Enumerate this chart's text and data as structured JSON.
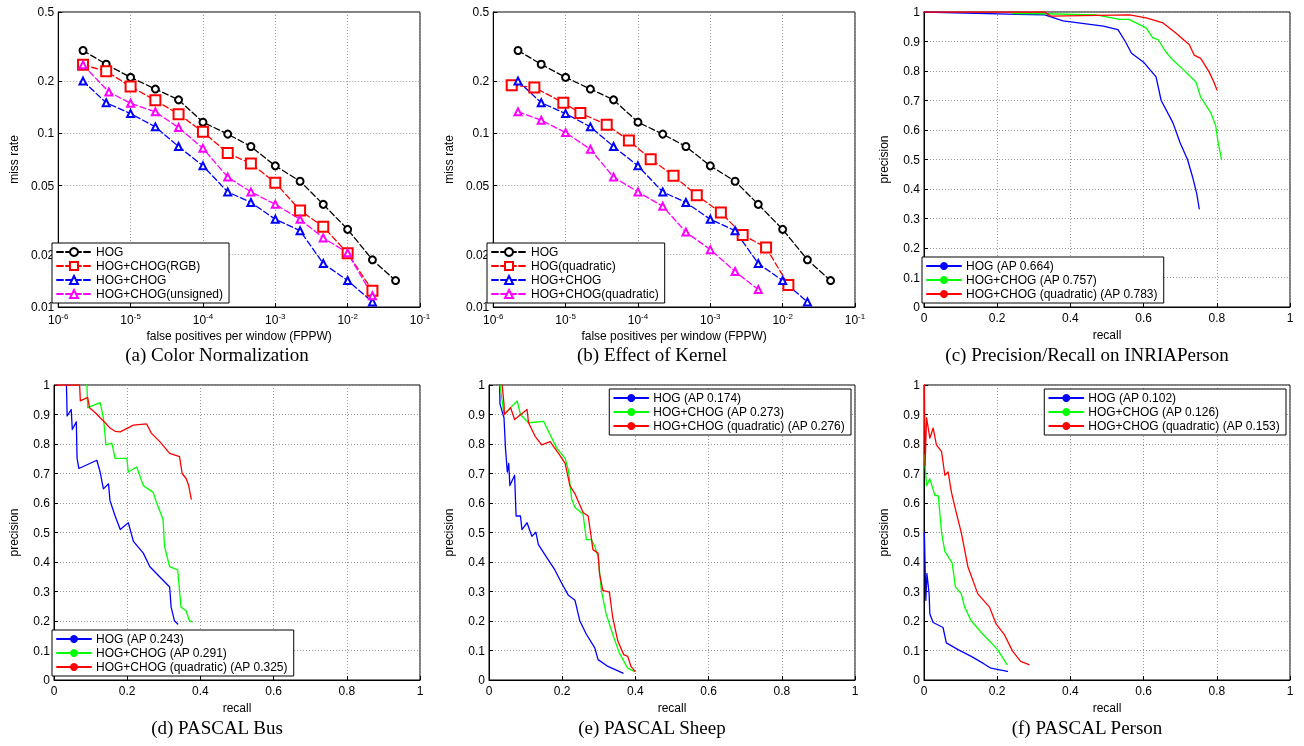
{
  "chart_data": [
    {
      "type": "line",
      "title": "(a) Color Normalization",
      "xlabel": "false positives per window (FPPW)",
      "ylabel": "miss rate",
      "log": "xy",
      "xlim": [
        1e-06,
        0.1
      ],
      "ylim": [
        0.01,
        0.5
      ],
      "xticks": [
        {
          "value": 1e-06,
          "label": "10$^{-6}$"
        },
        {
          "value": 1e-05,
          "label": "10$^{-5}$"
        },
        {
          "value": 0.0001,
          "label": "10$^{-4}$"
        },
        {
          "value": 0.001,
          "label": "10$^{-3}$"
        },
        {
          "value": 0.01,
          "label": "10$^{-2}$"
        },
        {
          "value": 0.1,
          "label": "10$^{-1}$"
        }
      ],
      "yticks": [
        0.01,
        0.02,
        0.05,
        0.1,
        0.2,
        0.5
      ],
      "grid": true,
      "legend": "bottom left",
      "series": [
        {
          "name": "HOG",
          "color": "#000000",
          "marker": "circle",
          "line_style": "dashed",
          "x": [
            2.2e-06,
            4.6e-06,
            1e-05,
            2.2e-05,
            4.6e-05,
            0.0001,
            0.00022,
            0.00046,
            0.001,
            0.0022,
            0.0046,
            0.01,
            0.022,
            0.046
          ],
          "values": [
            0.3,
            0.25,
            0.21,
            0.18,
            0.156,
            0.116,
            0.099,
            0.084,
            0.065,
            0.053,
            0.039,
            0.028,
            0.0187,
            0.0142
          ]
        },
        {
          "name": "HOG+CHOG(RGB)",
          "color": "#ff0000",
          "marker": "square",
          "line_style": "dashed",
          "x": [
            2.2e-06,
            4.6e-06,
            1e-05,
            2.2e-05,
            4.6e-05,
            0.0001,
            0.00022,
            0.00046,
            0.001,
            0.0022,
            0.0046,
            0.01,
            0.022
          ],
          "values": [
            0.248,
            0.228,
            0.186,
            0.155,
            0.129,
            0.102,
            0.077,
            0.067,
            0.052,
            0.036,
            0.029,
            0.0204,
            0.0124
          ]
        },
        {
          "name": "HOG+CHOG",
          "color": "#0000ff",
          "marker": "triangle",
          "line_style": "dashed",
          "x": [
            2.2e-06,
            4.6e-06,
            1e-05,
            2.2e-05,
            4.6e-05,
            0.0001,
            0.00022,
            0.00046,
            0.001,
            0.0022,
            0.0046,
            0.01,
            0.022
          ],
          "values": [
            0.2,
            0.15,
            0.13,
            0.109,
            0.084,
            0.065,
            0.046,
            0.04,
            0.032,
            0.0275,
            0.0178,
            0.0142,
            0.0107
          ]
        },
        {
          "name": "HOG+CHOG(unsigned)",
          "color": "#ff00ff",
          "marker": "triangle",
          "line_style": "dashed",
          "x": [
            2.2e-06,
            5e-06,
            1e-05,
            2.2e-05,
            4.6e-05,
            0.0001,
            0.00022,
            0.00046,
            0.001,
            0.0022,
            0.0046,
            0.01,
            0.022
          ],
          "values": [
            0.248,
            0.173,
            0.149,
            0.133,
            0.108,
            0.082,
            0.056,
            0.046,
            0.039,
            0.032,
            0.025,
            0.0205,
            0.0116
          ]
        }
      ]
    },
    {
      "type": "line",
      "title": "(b) Effect of Kernel",
      "xlabel": "false positives per window (FPPW)",
      "ylabel": "miss rate",
      "log": "xy",
      "xlim": [
        1e-06,
        0.1
      ],
      "ylim": [
        0.01,
        0.5
      ],
      "xticks": [
        {
          "value": 1e-06,
          "label": "10$^{-6}$"
        },
        {
          "value": 1e-05,
          "label": "10$^{-5}$"
        },
        {
          "value": 0.0001,
          "label": "10$^{-4}$"
        },
        {
          "value": 0.001,
          "label": "10$^{-3}$"
        },
        {
          "value": 0.01,
          "label": "10$^{-2}$"
        },
        {
          "value": 0.1,
          "label": "10$^{-1}$"
        }
      ],
      "yticks": [
        0.01,
        0.02,
        0.05,
        0.1,
        0.2,
        0.5
      ],
      "grid": true,
      "legend": "bottom left",
      "series": [
        {
          "name": "HOG",
          "color": "#000000",
          "marker": "circle",
          "line_style": "dashed",
          "x": [
            2.2e-06,
            4.6e-06,
            1e-05,
            2.2e-05,
            4.6e-05,
            0.0001,
            0.00022,
            0.00046,
            0.001,
            0.0022,
            0.0046,
            0.01,
            0.022,
            0.046
          ],
          "values": [
            0.3,
            0.25,
            0.21,
            0.18,
            0.156,
            0.116,
            0.099,
            0.084,
            0.065,
            0.053,
            0.039,
            0.028,
            0.0187,
            0.0142
          ]
        },
        {
          "name": "HOG(quadratic)",
          "color": "#ff0000",
          "marker": "square",
          "line_style": "dashed",
          "x": [
            1.8e-06,
            3.7e-06,
            9.3e-06,
            1.6e-05,
            3.7e-05,
            7.5e-05,
            0.00015,
            0.00031,
            0.00065,
            0.0014,
            0.0028,
            0.0059,
            0.012
          ],
          "values": [
            0.189,
            0.184,
            0.15,
            0.131,
            0.112,
            0.091,
            0.071,
            0.057,
            0.044,
            0.035,
            0.026,
            0.022,
            0.0134
          ]
        },
        {
          "name": "HOG+CHOG",
          "color": "#0000ff",
          "marker": "triangle",
          "line_style": "dashed",
          "x": [
            2.2e-06,
            4.6e-06,
            1e-05,
            2.2e-05,
            4.6e-05,
            0.0001,
            0.00022,
            0.00046,
            0.001,
            0.0022,
            0.0046,
            0.01,
            0.022
          ],
          "values": [
            0.2,
            0.15,
            0.13,
            0.109,
            0.084,
            0.065,
            0.046,
            0.04,
            0.032,
            0.0275,
            0.0178,
            0.0142,
            0.0107
          ]
        },
        {
          "name": "HOG+CHOG(quadratic)",
          "color": "#ff00ff",
          "marker": "triangle",
          "line_style": "dashed",
          "x": [
            2.2e-06,
            4.6e-06,
            1e-05,
            2.2e-05,
            4.6e-05,
            0.0001,
            0.00022,
            0.00046,
            0.001,
            0.0022,
            0.0046
          ],
          "values": [
            0.133,
            0.119,
            0.101,
            0.081,
            0.056,
            0.046,
            0.038,
            0.027,
            0.0214,
            0.016,
            0.0126
          ]
        }
      ]
    },
    {
      "type": "line",
      "title": "(c) Precision/Recall on INRIAPerson",
      "xlabel": "recall",
      "ylabel": "precision",
      "xlim": [
        0,
        1
      ],
      "ylim": [
        0,
        1
      ],
      "xticks": [
        0,
        0.2,
        0.4,
        0.6,
        0.8,
        1
      ],
      "yticks": [
        0,
        0.1,
        0.2,
        0.3,
        0.4,
        0.5,
        0.6,
        0.7,
        0.8,
        0.9,
        1
      ],
      "grid": true,
      "legend": "bottom left",
      "series": [
        {
          "name": "HOG (AP 0.664)",
          "color": "#0000ff",
          "x": [
            0,
            0.33,
            0.38,
            0.49,
            0.53,
            0.55,
            0.567,
            0.6,
            0.634,
            0.648,
            0.68,
            0.7,
            0.72,
            0.734,
            0.745,
            0.752
          ],
          "values": [
            1,
            0.99,
            0.97,
            0.952,
            0.94,
            0.9,
            0.86,
            0.83,
            0.78,
            0.7,
            0.625,
            0.556,
            0.5,
            0.44,
            0.385,
            0.333
          ]
        },
        {
          "name": "HOG+CHOG (AP 0.757)",
          "color": "#00ff00",
          "x": [
            0.24,
            0.33,
            0.47,
            0.535,
            0.56,
            0.607,
            0.625,
            0.64,
            0.66,
            0.68,
            0.71,
            0.743,
            0.756,
            0.783,
            0.797,
            0.804,
            0.813
          ],
          "values": [
            0.995,
            0.994,
            0.99,
            0.975,
            0.975,
            0.946,
            0.912,
            0.906,
            0.866,
            0.837,
            0.803,
            0.763,
            0.711,
            0.66,
            0.614,
            0.556,
            0.5
          ]
        },
        {
          "name": "HOG+CHOG (quadratic) (AP 0.783)",
          "color": "#ff0000",
          "x": [
            0,
            0.33,
            0.346,
            0.562,
            0.607,
            0.653,
            0.688,
            0.725,
            0.738,
            0.756,
            0.779,
            0.792,
            0.8
          ],
          "values": [
            1,
            1,
            0.986,
            0.99,
            0.98,
            0.963,
            0.929,
            0.889,
            0.854,
            0.843,
            0.797,
            0.763,
            0.737
          ]
        }
      ]
    },
    {
      "type": "line",
      "title": "(d) PASCAL Bus",
      "xlabel": "recall",
      "ylabel": "precision",
      "xlim": [
        0,
        1
      ],
      "ylim": [
        0,
        1
      ],
      "xticks": [
        0,
        0.2,
        0.4,
        0.6,
        0.8,
        1
      ],
      "yticks": [
        0,
        0.1,
        0.2,
        0.3,
        0.4,
        0.5,
        0.6,
        0.7,
        0.8,
        0.9,
        1
      ],
      "grid": true,
      "legend": "bottom left",
      "series": [
        {
          "name": "HOG (AP 0.243)",
          "color": "#0000ff",
          "x": [
            0.034,
            0.036,
            0.047,
            0.05,
            0.061,
            0.063,
            0.068,
            0.117,
            0.126,
            0.135,
            0.149,
            0.153,
            0.167,
            0.181,
            0.203,
            0.217,
            0.244,
            0.262,
            0.28,
            0.298,
            0.316,
            0.32,
            0.329,
            0.338
          ],
          "values": [
            1,
            0.895,
            0.917,
            0.849,
            0.875,
            0.751,
            0.717,
            0.745,
            0.705,
            0.648,
            0.665,
            0.608,
            0.556,
            0.51,
            0.533,
            0.47,
            0.43,
            0.384,
            0.361,
            0.338,
            0.315,
            0.247,
            0.201,
            0.19
          ]
        },
        {
          "name": "HOG+CHOG (AP 0.291)",
          "color": "#00ff00",
          "x": [
            0.09,
            0.092,
            0.126,
            0.135,
            0.142,
            0.158,
            0.167,
            0.199,
            0.203,
            0.226,
            0.244,
            0.271,
            0.28,
            0.298,
            0.302,
            0.316,
            0.338,
            0.347,
            0.361,
            0.37,
            0.377
          ],
          "values": [
            1,
            0.923,
            0.94,
            0.889,
            0.797,
            0.803,
            0.751,
            0.751,
            0.705,
            0.722,
            0.659,
            0.636,
            0.602,
            0.544,
            0.453,
            0.384,
            0.373,
            0.247,
            0.235,
            0.201,
            0.197
          ]
        },
        {
          "name": "HOG+CHOG (quadratic) (AP 0.325)",
          "color": "#ff0000",
          "x": [
            0.005,
            0.07,
            0.072,
            0.092,
            0.097,
            0.113,
            0.126,
            0.14,
            0.153,
            0.167,
            0.181,
            0.217,
            0.253,
            0.266,
            0.289,
            0.316,
            0.343,
            0.35,
            0.361,
            0.368,
            0.375
          ],
          "values": [
            1,
            1,
            0.946,
            0.958,
            0.923,
            0.906,
            0.889,
            0.872,
            0.854,
            0.843,
            0.841,
            0.864,
            0.868,
            0.837,
            0.808,
            0.768,
            0.757,
            0.7,
            0.683,
            0.659,
            0.613
          ]
        }
      ]
    },
    {
      "type": "line",
      "title": "(e) PASCAL Sheep",
      "xlabel": "recall",
      "ylabel": "precision",
      "xlim": [
        0,
        1
      ],
      "ylim": [
        0,
        1
      ],
      "xticks": [
        0,
        0.2,
        0.4,
        0.6,
        0.8,
        1
      ],
      "yticks": [
        0,
        0.1,
        0.2,
        0.3,
        0.4,
        0.5,
        0.6,
        0.7,
        0.8,
        0.9,
        1
      ],
      "grid": true,
      "legend": "top right",
      "series": [
        {
          "name": "HOG (AP 0.174)",
          "color": "#0000ff",
          "x": [
            0.029,
            0.03,
            0.041,
            0.045,
            0.05,
            0.054,
            0.057,
            0.07,
            0.074,
            0.086,
            0.09,
            0.104,
            0.117,
            0.128,
            0.135,
            0.162,
            0.18,
            0.199,
            0.217,
            0.235,
            0.248,
            0.266,
            0.289,
            0.298,
            0.325,
            0.366
          ],
          "values": [
            1,
            0.935,
            0.889,
            0.786,
            0.705,
            0.734,
            0.659,
            0.694,
            0.556,
            0.556,
            0.51,
            0.533,
            0.487,
            0.501,
            0.459,
            0.407,
            0.373,
            0.327,
            0.287,
            0.27,
            0.201,
            0.155,
            0.109,
            0.069,
            0.046,
            0.023
          ]
        },
        {
          "name": "HOG+CHOG (AP 0.273)",
          "color": "#00ff00",
          "x": [
            0.03,
            0.041,
            0.077,
            0.086,
            0.108,
            0.149,
            0.185,
            0.208,
            0.217,
            0.226,
            0.235,
            0.257,
            0.266,
            0.28,
            0.289,
            0.298,
            0.307,
            0.32,
            0.338,
            0.356,
            0.379,
            0.397
          ],
          "values": [
            1,
            0.9,
            0.946,
            0.9,
            0.872,
            0.877,
            0.786,
            0.751,
            0.711,
            0.613,
            0.585,
            0.562,
            0.476,
            0.476,
            0.453,
            0.419,
            0.304,
            0.224,
            0.155,
            0.092,
            0.04,
            0.029
          ]
        },
        {
          "name": "HOG+CHOG (quadratic) (AP 0.276)",
          "color": "#ff0000",
          "x": [
            0.036,
            0.041,
            0.042,
            0.059,
            0.07,
            0.104,
            0.108,
            0.126,
            0.144,
            0.167,
            0.19,
            0.208,
            0.221,
            0.235,
            0.257,
            0.271,
            0.284,
            0.298,
            0.302,
            0.311,
            0.329,
            0.338,
            0.352,
            0.368,
            0.379,
            0.388,
            0.399
          ],
          "values": [
            1,
            0.935,
            0.9,
            0.923,
            0.883,
            0.917,
            0.872,
            0.826,
            0.797,
            0.808,
            0.768,
            0.734,
            0.659,
            0.631,
            0.568,
            0.556,
            0.442,
            0.43,
            0.361,
            0.304,
            0.298,
            0.212,
            0.132,
            0.086,
            0.08,
            0.046,
            0.029
          ]
        }
      ]
    },
    {
      "type": "line",
      "title": "(f) PASCAL Person",
      "xlabel": "recall",
      "ylabel": "precision",
      "xlim": [
        0,
        1
      ],
      "ylim": [
        0,
        1
      ],
      "xticks": [
        0,
        0.2,
        0.4,
        0.6,
        0.8,
        1
      ],
      "yticks": [
        0,
        0.1,
        0.2,
        0.3,
        0.4,
        0.5,
        0.6,
        0.7,
        0.8,
        0.9,
        1
      ],
      "grid": true,
      "legend": "top right",
      "series": [
        {
          "name": "HOG (AP 0.102)",
          "color": "#0000ff",
          "x": [
            0.001,
            0.005,
            0.008,
            0.014,
            0.016,
            0.025,
            0.052,
            0.061,
            0.093,
            0.129,
            0.161,
            0.183,
            0.228
          ],
          "values": [
            0.499,
            0.27,
            0.361,
            0.292,
            0.224,
            0.195,
            0.178,
            0.126,
            0.103,
            0.08,
            0.057,
            0.04,
            0.029
          ]
        },
        {
          "name": "HOG+CHOG (AP 0.126)",
          "color": "#00ff00",
          "x": [
            0.001,
            0.007,
            0.016,
            0.03,
            0.039,
            0.048,
            0.057,
            0.077,
            0.086,
            0.102,
            0.111,
            0.129,
            0.161,
            0.179,
            0.201,
            0.227
          ],
          "values": [
            0.763,
            0.659,
            0.682,
            0.625,
            0.625,
            0.5,
            0.436,
            0.396,
            0.315,
            0.292,
            0.247,
            0.201,
            0.155,
            0.132,
            0.103,
            0.052
          ]
        },
        {
          "name": "HOG+CHOG (quadratic) (AP 0.153)",
          "color": "#ff0000",
          "x": [
            0.001,
            0.003,
            0.007,
            0.016,
            0.025,
            0.034,
            0.048,
            0.057,
            0.066,
            0.075,
            0.088,
            0.102,
            0.12,
            0.147,
            0.179,
            0.197,
            0.219,
            0.242,
            0.264,
            0.287
          ],
          "values": [
            1,
            0.728,
            0.889,
            0.82,
            0.854,
            0.797,
            0.774,
            0.694,
            0.705,
            0.636,
            0.568,
            0.499,
            0.384,
            0.292,
            0.247,
            0.19,
            0.155,
            0.098,
            0.063,
            0.052
          ]
        }
      ]
    }
  ]
}
